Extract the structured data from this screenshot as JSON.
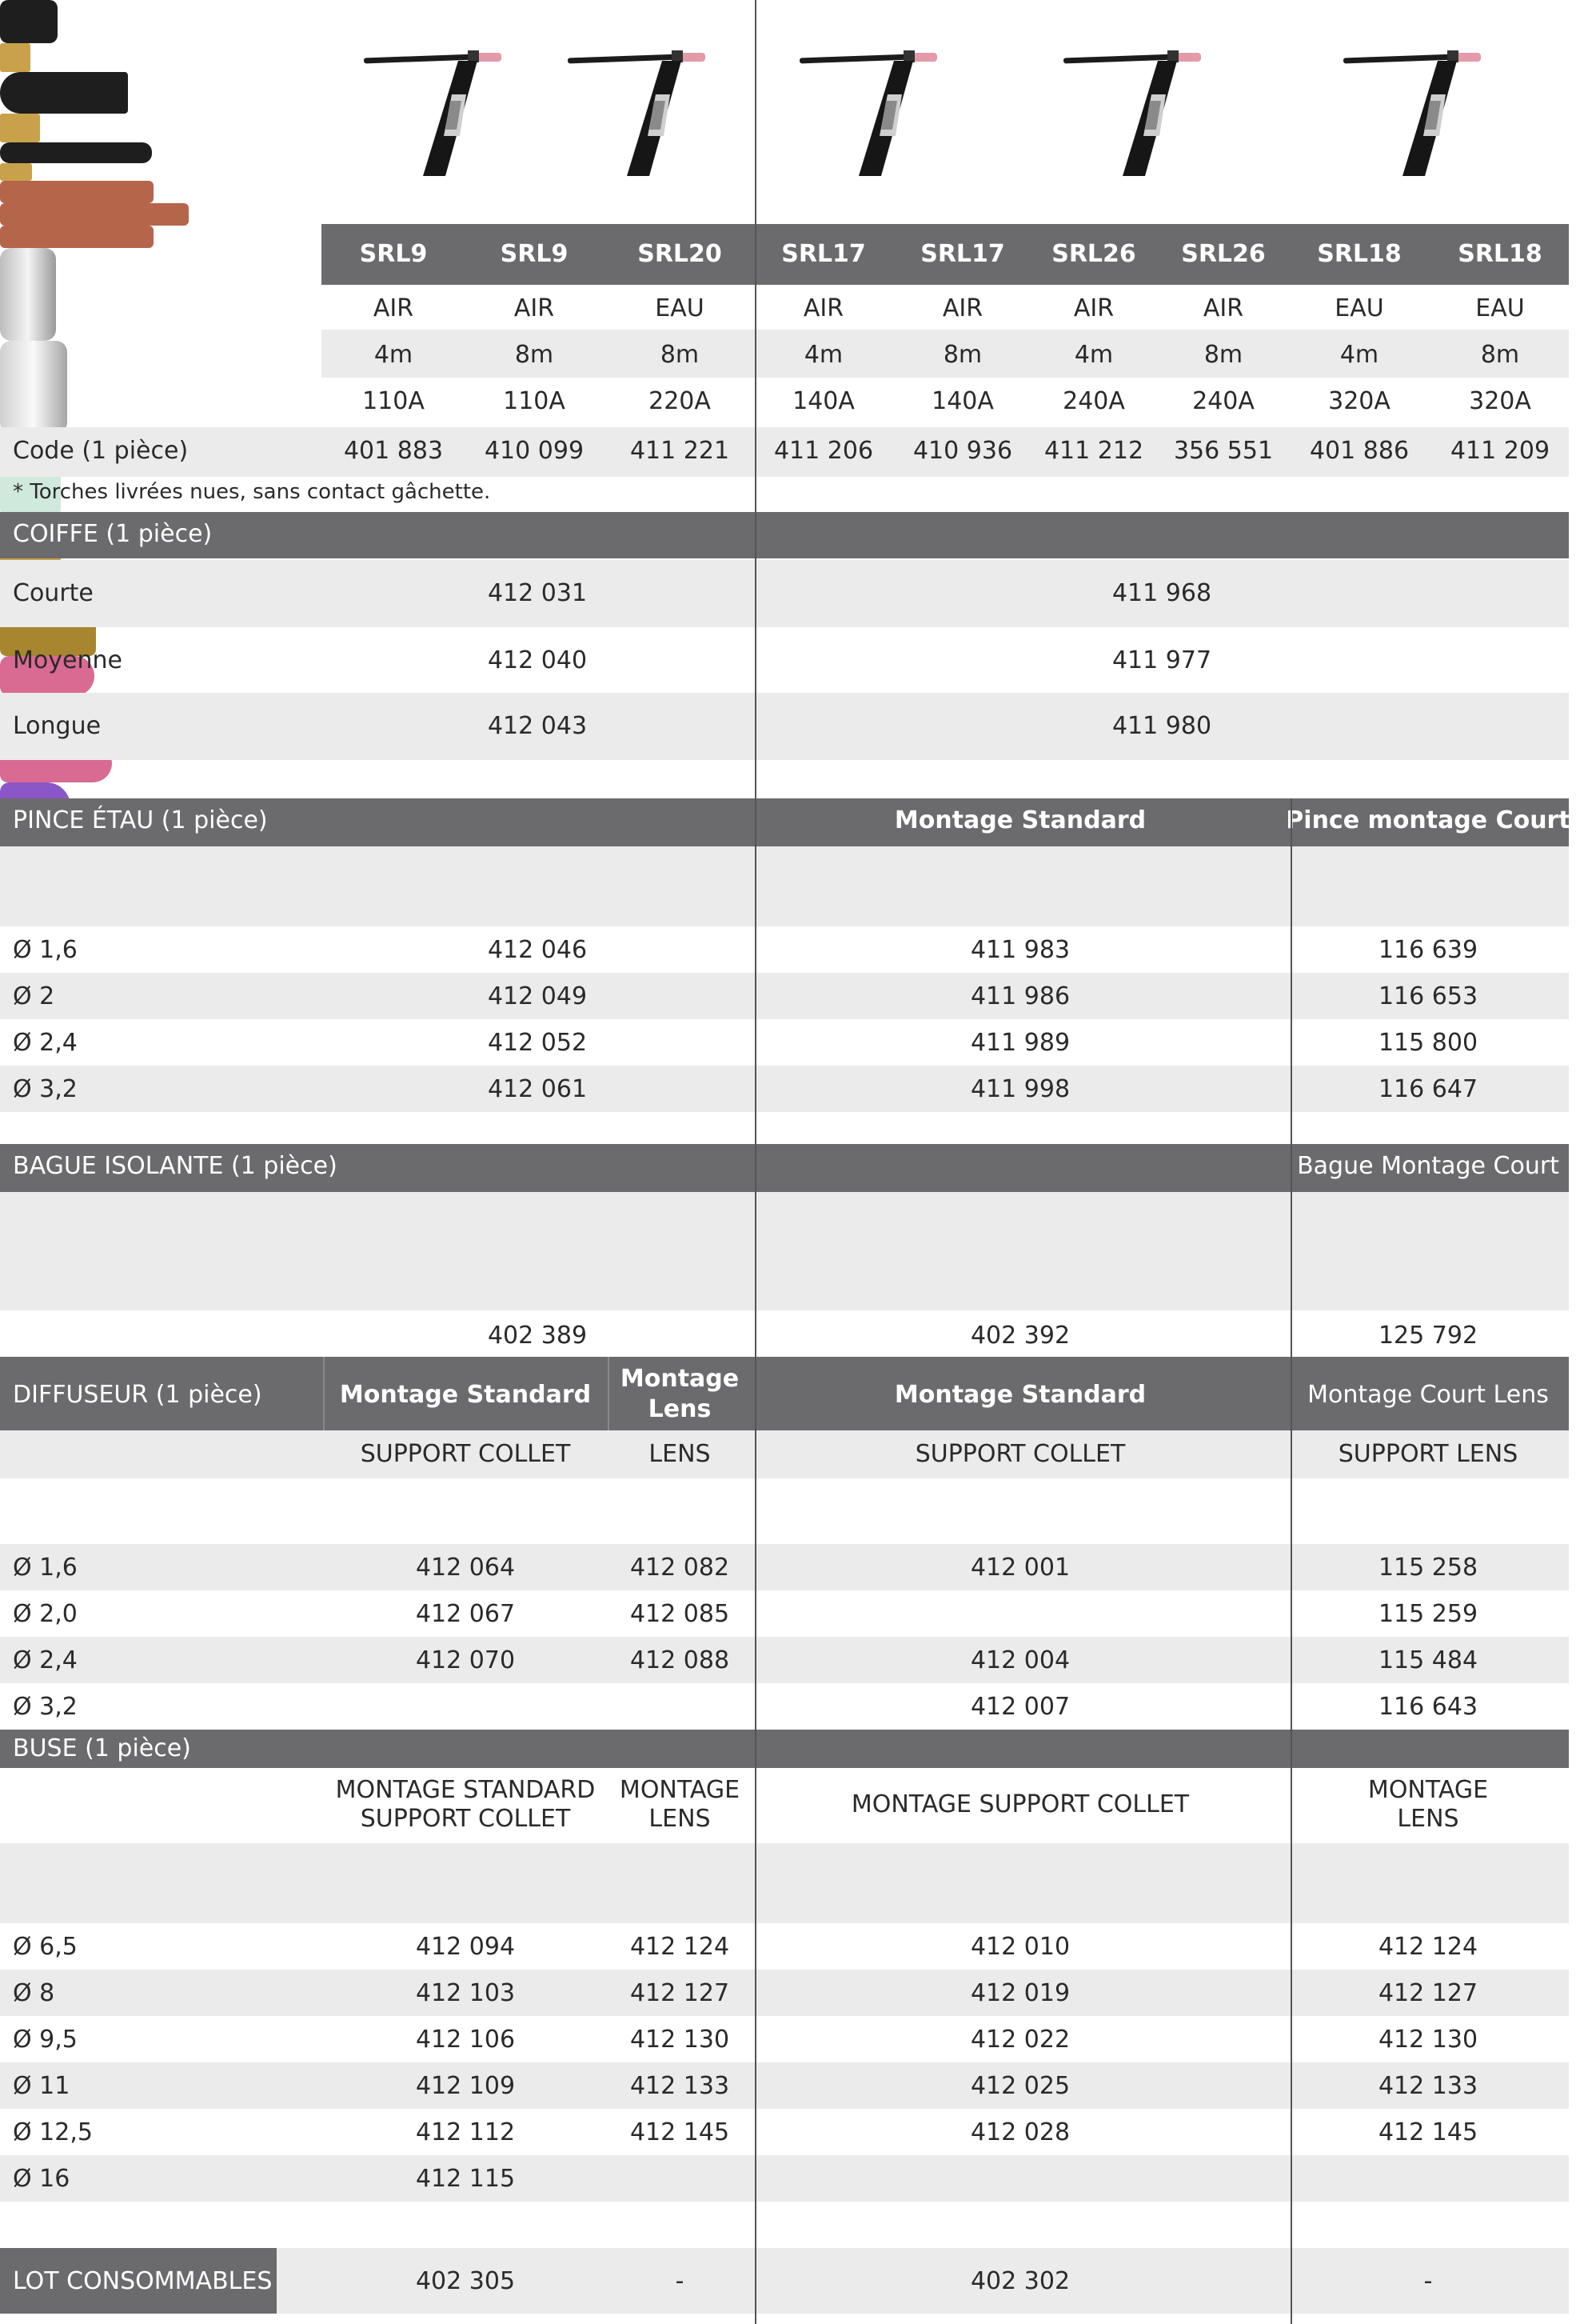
{
  "torches": [
    {
      "model": "SRL9",
      "cooling": "AIR",
      "length": "4m",
      "amps": "110A",
      "code": "401 883"
    },
    {
      "model": "SRL9",
      "cooling": "AIR",
      "length": "8m",
      "amps": "110A",
      "code": "410 099"
    },
    {
      "model": "SRL20",
      "cooling": "EAU",
      "length": "8m",
      "amps": "220A",
      "code": "411 221"
    },
    {
      "model": "SRL17",
      "cooling": "AIR",
      "length": "4m",
      "amps": "140A",
      "code": "411 206"
    },
    {
      "model": "SRL17",
      "cooling": "AIR",
      "length": "8m",
      "amps": "140A",
      "code": "410 936"
    },
    {
      "model": "SRL26",
      "cooling": "AIR",
      "length": "4m",
      "amps": "240A",
      "code": "411 212"
    },
    {
      "model": "SRL26",
      "cooling": "AIR",
      "length": "8m",
      "amps": "240A",
      "code": "356 551"
    },
    {
      "model": "SRL18",
      "cooling": "EAU",
      "length": "4m",
      "amps": "320A",
      "code": "401 886"
    },
    {
      "model": "SRL18",
      "cooling": "EAU",
      "length": "8m",
      "amps": "320A",
      "code": "411 209"
    }
  ],
  "code_label": "Code (1 pièce)",
  "footnote": "* Torches livrées nues, sans contact gâchette.",
  "coiffe": {
    "title": "COIFFE (1 pièce)",
    "rows": [
      {
        "label": "Courte",
        "a": "412 031",
        "b": "411 968"
      },
      {
        "label": "Moyenne",
        "a": "412 040",
        "b": "411 977"
      },
      {
        "label": "Longue",
        "a": "412 043",
        "b": "411 980"
      }
    ]
  },
  "pince": {
    "title": "PINCE ÉTAU (1 pièce)",
    "sub_b": "Montage Standard",
    "sub_c": "Pince montage Court",
    "rows": [
      {
        "label": "Ø 1,6",
        "a": "412 046",
        "b": "411 983",
        "c": "116 639"
      },
      {
        "label": "Ø 2",
        "a": "412 049",
        "b": "411 986",
        "c": "116 653"
      },
      {
        "label": "Ø 2,4",
        "a": "412 052",
        "b": "411 989",
        "c": "115 800"
      },
      {
        "label": "Ø 3,2",
        "a": "412 061",
        "b": "411 998",
        "c": "116 647"
      }
    ]
  },
  "bague": {
    "title": "BAGUE ISOLANTE (1 pièce)",
    "sub_c": "Bague Montage Court",
    "a": "402 389",
    "b": "402 392",
    "c": "125 792"
  },
  "diffuseur": {
    "title": "DIFFUSEUR (1 pièce)",
    "sub_a1": "Montage Standard",
    "sub_a2_l1": "Montage",
    "sub_a2_l2": "Lens",
    "sub_b": "Montage Standard",
    "sub_c": "Montage Court Lens",
    "lbl_a1": "SUPPORT COLLET",
    "lbl_a2": "LENS",
    "lbl_b": "SUPPORT COLLET",
    "lbl_c": "SUPPORT LENS",
    "rows": [
      {
        "label": "Ø 1,6",
        "a1": "412 064",
        "a2": "412 082",
        "b": "412 001",
        "c": "115 258"
      },
      {
        "label": "Ø 2,0",
        "a1": "412 067",
        "a2": "412 085",
        "b": "",
        "c": "115 259"
      },
      {
        "label": "Ø 2,4",
        "a1": "412 070",
        "a2": "412 088",
        "b": "412 004",
        "c": "115 484"
      },
      {
        "label": "Ø 3,2",
        "a1": "",
        "a2": "",
        "b": "412 007",
        "c": "116 643"
      }
    ]
  },
  "buse": {
    "title": "BUSE (1 pièce)",
    "lbl_a1_l1": "MONTAGE STANDARD",
    "lbl_a1_l2": "SUPPORT COLLET",
    "lbl_a2_l1": "MONTAGE",
    "lbl_a2_l2": "LENS",
    "lbl_b": "MONTAGE SUPPORT COLLET",
    "lbl_c_l1": "MONTAGE",
    "lbl_c_l2": "LENS",
    "rows": [
      {
        "label": "Ø 6,5",
        "a1": "412 094",
        "a2": "412 124",
        "b": "412 010",
        "c": "412 124"
      },
      {
        "label": "Ø 8",
        "a1": "412 103",
        "a2": "412 127",
        "b": "412 019",
        "c": "412 127"
      },
      {
        "label": "Ø 9,5",
        "a1": "412 106",
        "a2": "412 130",
        "b": "412 022",
        "c": "412 130"
      },
      {
        "label": "Ø 11",
        "a1": "412 109",
        "a2": "412 133",
        "b": "412 025",
        "c": "412 133"
      },
      {
        "label": "Ø 12,5",
        "a1": "412 112",
        "a2": "412 145",
        "b": "412 028",
        "c": "412 145"
      },
      {
        "label": "Ø 16",
        "a1": "412 115",
        "a2": "",
        "b": "",
        "c": ""
      }
    ]
  },
  "lot": {
    "title": "LOT CONSOMMABLES",
    "a1": "402 305",
    "a2": "-",
    "b": "402 302",
    "c": "-"
  },
  "colors": {
    "header": "#6b6b6d",
    "row_alt": "#ebebeb",
    "copper": "#b5654a",
    "pink": "#d96a91",
    "violet": "#8b56c8"
  }
}
